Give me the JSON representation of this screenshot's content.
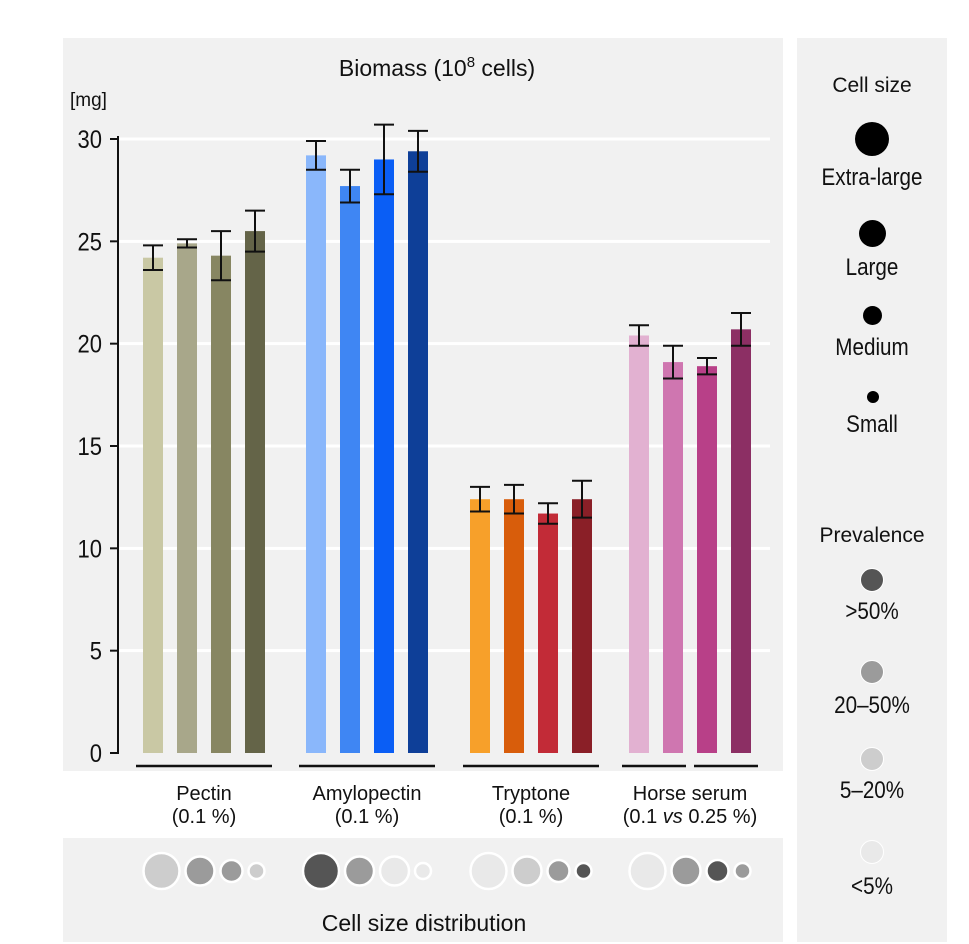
{
  "chart_data": {
    "type": "bar",
    "title": "Biomass (10",
    "title_sup": "8",
    "title_end": " cells)",
    "ylabel": "[mg]",
    "ylim": [
      0,
      30
    ],
    "yticks": [
      0,
      5,
      10,
      15,
      20,
      25,
      30
    ],
    "grid": true,
    "groups": [
      {
        "name": "Pectin",
        "sub_parts": [
          "(0.1 %)"
        ],
        "bars": [
          {
            "value": 24.2,
            "err": 0.6,
            "color": "#c9c8a4"
          },
          {
            "value": 24.9,
            "err": 0.2,
            "color": "#a8a78a"
          },
          {
            "value": 24.3,
            "err": 1.2,
            "color": "#878662"
          },
          {
            "value": 25.5,
            "err": 1.0,
            "color": "#646448"
          }
        ],
        "distribution": [
          {
            "size": "extra-large",
            "prevalence": "5-20%"
          },
          {
            "size": "large",
            "prevalence": "20-50%"
          },
          {
            "size": "medium",
            "prevalence": "20-50%"
          },
          {
            "size": "small",
            "prevalence": "5-20%"
          }
        ]
      },
      {
        "name": "Amylopectin",
        "sub_parts": [
          "(0.1 %)"
        ],
        "bars": [
          {
            "value": 29.2,
            "err": 0.7,
            "color": "#8ab7fb"
          },
          {
            "value": 27.7,
            "err": 0.8,
            "color": "#3f86f3"
          },
          {
            "value": 29.0,
            "err": 1.7,
            "color": "#0a5ef5"
          },
          {
            "value": 29.4,
            "err": 1.0,
            "color": "#0e3f98"
          }
        ],
        "distribution": [
          {
            "size": "extra-large",
            "prevalence": ">50%"
          },
          {
            "size": "large",
            "prevalence": "20-50%"
          },
          {
            "size": "large",
            "prevalence": "<5%"
          },
          {
            "size": "small",
            "prevalence": "<5%"
          }
        ]
      },
      {
        "name": "Tryptone",
        "sub_parts": [
          "(0.1 %)"
        ],
        "bars": [
          {
            "value": 12.4,
            "err": 0.6,
            "color": "#f7a02a"
          },
          {
            "value": 12.4,
            "err": 0.7,
            "color": "#d85d0b"
          },
          {
            "value": 11.7,
            "err": 0.5,
            "color": "#c22b37"
          },
          {
            "value": 12.4,
            "err": 0.9,
            "color": "#8a1f27"
          }
        ],
        "distribution": [
          {
            "size": "extra-large",
            "prevalence": "<5%"
          },
          {
            "size": "large",
            "prevalence": "5-20%"
          },
          {
            "size": "medium",
            "prevalence": "20-50%"
          },
          {
            "size": "small",
            "prevalence": ">50%"
          }
        ]
      },
      {
        "name": "Horse serum",
        "sub_parts": [
          "(0.1 ",
          "vs",
          " 0.25 %)"
        ],
        "bars": [
          {
            "value": 20.4,
            "err": 0.5,
            "color": "#e2b1d1"
          },
          {
            "value": 19.1,
            "err": 0.8,
            "color": "#cf76b0"
          },
          {
            "value": 18.9,
            "err": 0.4,
            "color": "#b84088"
          },
          {
            "value": 20.7,
            "err": 0.8,
            "color": "#8c2f64"
          }
        ],
        "distribution": [
          {
            "size": "extra-large",
            "prevalence": "<5%"
          },
          {
            "size": "large",
            "prevalence": "20-50%"
          },
          {
            "size": "medium",
            "prevalence": ">50%"
          },
          {
            "size": "small",
            "prevalence": "20-50%"
          }
        ]
      }
    ],
    "distribution_label": "Cell size distribution"
  },
  "legend": {
    "cell_size": {
      "title": "Cell size",
      "items": [
        {
          "key": "extra-large",
          "label": "Extra-large"
        },
        {
          "key": "large",
          "label": "Large"
        },
        {
          "key": "medium",
          "label": "Medium"
        },
        {
          "key": "small",
          "label": "Small"
        }
      ]
    },
    "prevalence": {
      "title": "Prevalence",
      "items": [
        {
          "key": ">50%",
          "label": ">50%",
          "color": "#555555"
        },
        {
          "key": "20-50%",
          "label": "20–50%",
          "color": "#9b9b9b"
        },
        {
          "key": "5-20%",
          "label": "5–20%",
          "color": "#cdcdcd"
        },
        {
          "key": "<5%",
          "label": "<5%",
          "color": "#e9e9e9"
        }
      ]
    }
  }
}
